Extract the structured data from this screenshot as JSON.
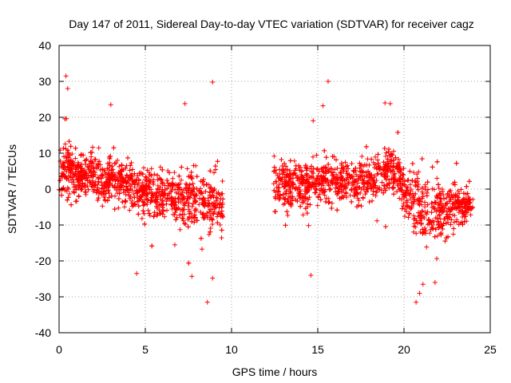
{
  "chart_data": {
    "type": "scatter",
    "title": "Day 147 of 2011, Sidereal Day-to-day VTEC variation (SDTVAR) for receiver cagz",
    "xlabel": "GPS time / hours",
    "ylabel": "SDTVAR / TECUs",
    "xlim": [
      0,
      25
    ],
    "ylim": [
      -40,
      40
    ],
    "xticks": [
      0,
      5,
      10,
      15,
      20,
      25
    ],
    "xtick_labels": [
      "0",
      "5",
      "10",
      "15",
      "20",
      "25"
    ],
    "yticks": [
      -40,
      -30,
      -20,
      -10,
      0,
      10,
      20,
      30,
      40
    ],
    "ytick_labels": [
      "-40",
      "-30",
      "-20",
      "-10",
      "0",
      "10",
      "20",
      "30",
      "40"
    ],
    "grid": true,
    "marker": "+",
    "color": "#ff0000",
    "data_gaps": [
      [
        9.5,
        12.4
      ]
    ],
    "trend": [
      [
        0.0,
        3
      ],
      [
        0.3,
        6
      ],
      [
        0.8,
        5
      ],
      [
        1.5,
        4
      ],
      [
        2.5,
        3
      ],
      [
        3.5,
        2
      ],
      [
        4.5,
        0
      ],
      [
        5.5,
        -1.5
      ],
      [
        6.5,
        -2.5
      ],
      [
        7.5,
        -3
      ],
      [
        8.5,
        -3.5
      ],
      [
        9.4,
        -4
      ],
      [
        12.5,
        1
      ],
      [
        13.0,
        2
      ],
      [
        14.0,
        1
      ],
      [
        15.0,
        2
      ],
      [
        15.8,
        3
      ],
      [
        16.5,
        2
      ],
      [
        17.0,
        1
      ],
      [
        18.0,
        3
      ],
      [
        18.8,
        5
      ],
      [
        19.2,
        6
      ],
      [
        19.6,
        4
      ],
      [
        20.0,
        -1
      ],
      [
        20.5,
        -3
      ],
      [
        21.0,
        -5
      ],
      [
        21.5,
        -7
      ],
      [
        22.0,
        -6
      ],
      [
        22.5,
        -5
      ],
      [
        23.0,
        -5
      ],
      [
        23.5,
        -4
      ],
      [
        24.0,
        -3
      ]
    ],
    "extreme_points": [
      [
        0.4,
        31.5
      ],
      [
        0.5,
        28
      ],
      [
        8.9,
        29.8
      ],
      [
        15.6,
        30
      ],
      [
        15.3,
        23.2
      ],
      [
        18.9,
        24
      ],
      [
        19.2,
        23.8
      ],
      [
        8.6,
        -31.5
      ],
      [
        20.7,
        -31.5
      ],
      [
        20.9,
        -29
      ],
      [
        14.6,
        -24
      ],
      [
        7.7,
        -24.3
      ],
      [
        8.9,
        -24.8
      ],
      [
        4.5,
        -23.5
      ],
      [
        21.1,
        -26.5
      ],
      [
        21.8,
        -26
      ],
      [
        3.0,
        23.5
      ],
      [
        7.3,
        23.8
      ]
    ]
  }
}
